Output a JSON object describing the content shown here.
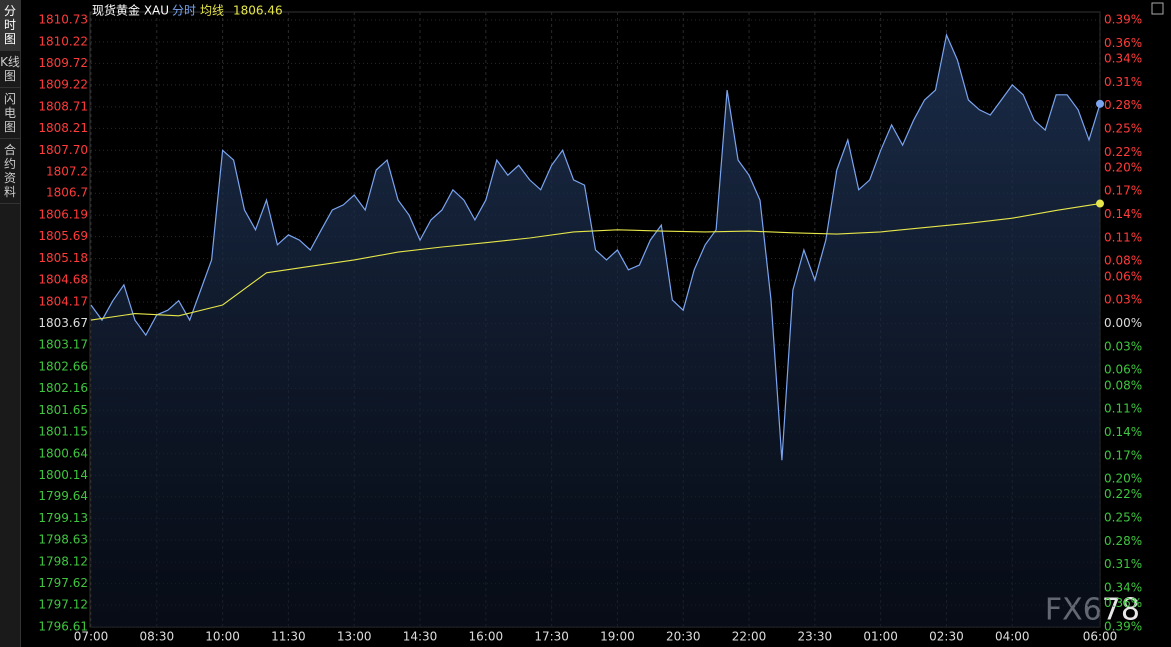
{
  "chart_data": {
    "type": "line",
    "title": "现货黄金 XAU",
    "header_value": 1806.46,
    "tabs": [
      "分时图",
      "K线图",
      "闪电图",
      "合约资料"
    ],
    "watermark": "FX678",
    "xlim": [
      "07:00",
      "06:00"
    ],
    "xticks": [
      "07:00",
      "08:30",
      "10:00",
      "11:30",
      "13:00",
      "14:30",
      "16:00",
      "17:30",
      "19:00",
      "20:30",
      "22:00",
      "23:30",
      "01:00",
      "02:30",
      "04:00",
      "06:00"
    ],
    "ylim": [
      1796.61,
      1810.73
    ],
    "yticks": [
      1810.73,
      1810.22,
      1809.72,
      1809.22,
      1808.71,
      1808.21,
      {
        "value": 1807.7,
        "label": "1807.70"
      },
      1807.2,
      1806.7,
      1806.19,
      1805.69,
      1805.18,
      1804.68,
      1804.17,
      1803.67,
      1803.17,
      1802.66,
      1802.16,
      1801.65,
      1801.15,
      1800.64,
      1800.14,
      1799.64,
      1799.13,
      1798.63,
      1798.12,
      1797.62,
      1797.12,
      1796.61
    ],
    "y2lim": [
      -0.39,
      0.39
    ],
    "y2ticks": [
      {
        "value": 0.39,
        "label": "0.39%"
      },
      {
        "value": 0.36,
        "label": "0.36%"
      },
      {
        "value": 0.34,
        "label": "0.34%"
      },
      {
        "value": 0.31,
        "label": "0.31%"
      },
      {
        "value": 0.28,
        "label": "0.28%"
      },
      {
        "value": 0.25,
        "label": "0.25%"
      },
      {
        "value": 0.22,
        "label": "0.22%"
      },
      {
        "value": 0.2,
        "label": "0.20%"
      },
      {
        "value": 0.17,
        "label": "0.17%"
      },
      {
        "value": 0.14,
        "label": "0.14%"
      },
      {
        "value": 0.11,
        "label": "0.11%"
      },
      {
        "value": 0.08,
        "label": "0.08%"
      },
      {
        "value": 0.06,
        "label": "0.06%"
      },
      {
        "value": 0.03,
        "label": "0.03%"
      },
      {
        "value": 0,
        "label": "0.00%"
      },
      {
        "value": -0.03,
        "label": "0.03%"
      },
      {
        "value": -0.06,
        "label": "0.06%"
      },
      {
        "value": -0.08,
        "label": "0.08%"
      },
      {
        "value": -0.11,
        "label": "0.11%"
      },
      {
        "value": -0.14,
        "label": "0.14%"
      },
      {
        "value": -0.17,
        "label": "0.17%"
      },
      {
        "value": -0.2,
        "label": "0.20%"
      },
      {
        "value": -0.22,
        "label": "0.22%"
      },
      {
        "value": -0.25,
        "label": "0.25%"
      },
      {
        "value": -0.28,
        "label": "0.28%"
      },
      {
        "value": -0.31,
        "label": "0.31%"
      },
      {
        "value": -0.34,
        "label": "0.34%"
      },
      {
        "value": -0.36,
        "label": "0.36%"
      },
      {
        "value": -0.39,
        "label": "0.39%"
      }
    ],
    "up_color": "#ff3b3b",
    "down_color": "#3fc53f",
    "flat_color": "#dddddd",
    "grid": true,
    "series": [
      {
        "name": "分时",
        "color": "#7aa4f0",
        "x": [
          "07:00",
          "07:15",
          "07:30",
          "07:45",
          "08:00",
          "08:15",
          "08:30",
          "08:45",
          "09:00",
          "09:15",
          "09:30",
          "09:45",
          "10:00",
          "10:15",
          "10:30",
          "10:45",
          "11:00",
          "11:15",
          "11:30",
          "11:45",
          "12:00",
          "12:15",
          "12:30",
          "12:45",
          "13:00",
          "13:15",
          "13:30",
          "13:45",
          "14:00",
          "14:15",
          "14:30",
          "14:45",
          "15:00",
          "15:15",
          "15:30",
          "15:45",
          "16:00",
          "16:15",
          "16:30",
          "16:45",
          "17:00",
          "17:15",
          "17:30",
          "17:45",
          "18:00",
          "18:15",
          "18:30",
          "18:45",
          "19:00",
          "19:15",
          "19:30",
          "19:45",
          "20:00",
          "20:15",
          "20:30",
          "20:45",
          "21:00",
          "21:15",
          "21:30",
          "21:45",
          "22:00",
          "22:15",
          "22:30",
          "22:45",
          "23:00",
          "23:15",
          "23:30",
          "23:45",
          "00:00",
          "00:15",
          "00:30",
          "00:45",
          "01:00",
          "01:15",
          "01:30",
          "01:45",
          "02:00",
          "02:15",
          "02:30",
          "02:45",
          "03:00",
          "03:15",
          "03:30",
          "03:45",
          "04:00",
          "04:15",
          "04:30",
          "04:45",
          "05:00",
          "05:15",
          "05:30",
          "05:45",
          "06:00"
        ],
        "values": [
          1804.1,
          1803.75,
          1804.2,
          1804.57,
          1803.75,
          1803.4,
          1803.87,
          1803.98,
          1804.2,
          1803.75,
          1804.45,
          1805.15,
          1807.7,
          1807.47,
          1806.31,
          1805.85,
          1806.54,
          1805.5,
          1805.73,
          1805.61,
          1805.38,
          1805.85,
          1806.31,
          1806.43,
          1806.66,
          1806.31,
          1807.24,
          1807.47,
          1806.54,
          1806.19,
          1805.61,
          1806.08,
          1806.31,
          1806.78,
          1806.54,
          1806.08,
          1806.54,
          1807.47,
          1807.12,
          1807.35,
          1807.01,
          1806.78,
          1807.35,
          1807.7,
          1807.01,
          1806.89,
          1805.38,
          1805.15,
          1805.38,
          1804.92,
          1805.03,
          1805.61,
          1805.96,
          1804.22,
          1803.98,
          1804.92,
          1805.5,
          1805.85,
          1809.1,
          1807.47,
          1807.12,
          1806.54,
          1804.22,
          1800.49,
          1804.45,
          1805.38,
          1804.68,
          1805.61,
          1807.24,
          1807.94,
          1806.78,
          1807.01,
          1807.7,
          1808.29,
          1807.82,
          1808.4,
          1808.87,
          1809.1,
          1810.38,
          1809.8,
          1808.87,
          1808.64,
          1808.52,
          1808.87,
          1809.22,
          1808.99,
          1808.4,
          1808.17,
          1808.99,
          1808.99,
          1808.64,
          1807.94,
          1808.78
        ]
      },
      {
        "name": "均线",
        "color": "#e6e64a",
        "x": [
          "07:00",
          "08:00",
          "09:00",
          "10:00",
          "11:00",
          "12:00",
          "13:00",
          "14:00",
          "15:00",
          "16:00",
          "17:00",
          "18:00",
          "19:00",
          "20:00",
          "21:00",
          "22:00",
          "23:00",
          "00:00",
          "01:00",
          "02:00",
          "03:00",
          "04:00",
          "05:00",
          "06:00"
        ],
        "values": [
          1803.75,
          1803.9,
          1803.85,
          1804.1,
          1804.85,
          1805.0,
          1805.15,
          1805.33,
          1805.45,
          1805.55,
          1805.66,
          1805.8,
          1805.85,
          1805.82,
          1805.8,
          1805.82,
          1805.78,
          1805.75,
          1805.8,
          1805.9,
          1806.0,
          1806.12,
          1806.3,
          1806.46
        ]
      }
    ]
  }
}
